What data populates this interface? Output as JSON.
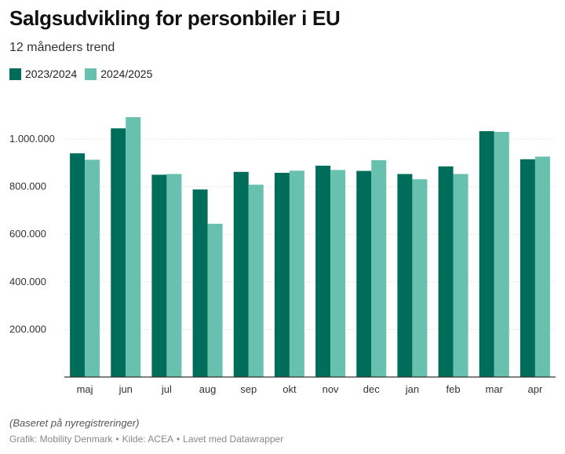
{
  "header": {
    "title": "Salgsudvikling for personbiler i EU",
    "subtitle": "12 måneders trend"
  },
  "colors": {
    "series_2023_2024": "#006d5b",
    "series_2024_2025": "#67c1ae",
    "grid": "#dddddd",
    "axis": "#333333",
    "tick_text": "#333333"
  },
  "chart_data": {
    "type": "bar",
    "title": "Salgsudvikling for personbiler i EU",
    "subtitle": "12 måneders trend",
    "xlabel": "",
    "ylabel": "",
    "categories": [
      "maj",
      "jun",
      "jul",
      "aug",
      "sep",
      "okt",
      "nov",
      "dec",
      "jan",
      "feb",
      "mar",
      "apr"
    ],
    "series": [
      {
        "name": "2023/2024",
        "values": [
          940000,
          1045000,
          850000,
          788000,
          862000,
          858000,
          888000,
          866000,
          853000,
          885000,
          1033000,
          915000
        ]
      },
      {
        "name": "2024/2025",
        "values": [
          913000,
          1092000,
          853000,
          644000,
          808000,
          867000,
          870000,
          911000,
          831000,
          853000,
          1030000,
          926000
        ]
      }
    ],
    "ylim": [
      0,
      1000000
    ],
    "yticks": [
      200000,
      400000,
      600000,
      800000,
      1000000
    ],
    "ytick_labels": [
      "200.000",
      "400.000",
      "600.000",
      "800.000",
      "1.000.000"
    ],
    "grid": true,
    "legend_position": "top-left"
  },
  "footer": {
    "note": "(Baseret på nyregistreringer)",
    "credit_parts": [
      "Grafik: Mobility Denmark",
      "Kilde: ACEA",
      "Lavet med Datawrapper"
    ],
    "separator": "•"
  }
}
